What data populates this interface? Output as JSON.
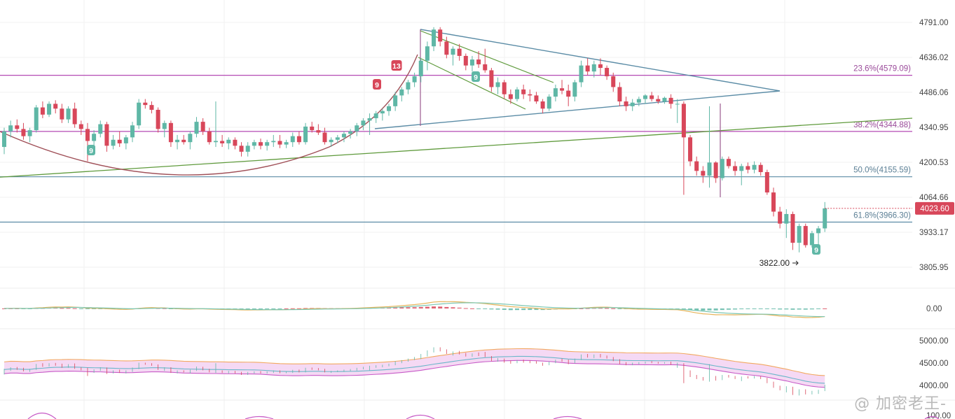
{
  "chart_data": [
    {
      "type": "candlestick",
      "panel": "price",
      "ylim": [
        3740,
        4835
      ],
      "y_ticks": [
        "4791.00",
        "4636.02",
        "4486.06",
        "4340.95",
        "4200.53",
        "4064.66",
        "3933.17",
        "3805.95"
      ],
      "last_price": "4023.60",
      "low_annotation": "3822.00",
      "fib_levels": [
        {
          "label": "23.6%(4579.09)",
          "value": 4579.09
        },
        {
          "label": "38.2%(4344.88)",
          "value": 4344.88
        },
        {
          "label": "50.0%(4155.59)",
          "value": 4155.59
        },
        {
          "label": "61.8%(3966.30)",
          "value": 3966.3
        }
      ],
      "markers": [
        "9",
        "9",
        "13",
        "9",
        "9"
      ],
      "candles": [
        [
          4280,
          4360,
          4250,
          4345
        ],
        [
          4345,
          4390,
          4320,
          4370
        ],
        [
          4370,
          4395,
          4340,
          4355
        ],
        [
          4355,
          4380,
          4310,
          4325
        ],
        [
          4325,
          4360,
          4300,
          4350
        ],
        [
          4350,
          4455,
          4340,
          4445
        ],
        [
          4445,
          4470,
          4400,
          4415
        ],
        [
          4415,
          4470,
          4405,
          4460
        ],
        [
          4460,
          4475,
          4420,
          4440
        ],
        [
          4440,
          4460,
          4380,
          4395
        ],
        [
          4395,
          4450,
          4380,
          4440
        ],
        [
          4440,
          4465,
          4360,
          4375
        ],
        [
          4375,
          4390,
          4330,
          4355
        ],
        [
          4355,
          4380,
          4220,
          4305
        ],
        [
          4305,
          4350,
          4280,
          4335
        ],
        [
          4335,
          4390,
          4320,
          4375
        ],
        [
          4375,
          4385,
          4260,
          4285
        ],
        [
          4285,
          4330,
          4270,
          4310
        ],
        [
          4310,
          4345,
          4280,
          4295
        ],
        [
          4295,
          4330,
          4270,
          4320
        ],
        [
          4320,
          4385,
          4300,
          4370
        ],
        [
          4370,
          4480,
          4355,
          4465
        ],
        [
          4465,
          4480,
          4440,
          4455
        ],
        [
          4455,
          4470,
          4420,
          4435
        ],
        [
          4435,
          4445,
          4340,
          4355
        ],
        [
          4355,
          4390,
          4320,
          4380
        ],
        [
          4380,
          4390,
          4280,
          4300
        ],
        [
          4300,
          4330,
          4270,
          4310
        ],
        [
          4310,
          4330,
          4290,
          4300
        ],
        [
          4300,
          4345,
          4270,
          4335
        ],
        [
          4335,
          4405,
          4320,
          4385
        ],
        [
          4385,
          4400,
          4330,
          4345
        ],
        [
          4345,
          4360,
          4290,
          4300
        ],
        [
          4300,
          4470,
          4280,
          4305
        ],
        [
          4305,
          4330,
          4280,
          4295
        ],
        [
          4295,
          4320,
          4270,
          4310
        ],
        [
          4310,
          4320,
          4270,
          4285
        ],
        [
          4285,
          4300,
          4240,
          4260
        ],
        [
          4260,
          4300,
          4240,
          4285
        ],
        [
          4285,
          4310,
          4270,
          4300
        ],
        [
          4300,
          4315,
          4270,
          4285
        ],
        [
          4285,
          4310,
          4265,
          4300
        ],
        [
          4300,
          4330,
          4280,
          4305
        ],
        [
          4305,
          4330,
          4275,
          4290
        ],
        [
          4290,
          4310,
          4275,
          4300
        ],
        [
          4300,
          4340,
          4280,
          4325
        ],
        [
          4325,
          4345,
          4290,
          4300
        ],
        [
          4300,
          4380,
          4290,
          4365
        ],
        [
          4365,
          4385,
          4340,
          4350
        ],
        [
          4350,
          4375,
          4330,
          4340
        ],
        [
          4340,
          4360,
          4290,
          4300
        ],
        [
          4300,
          4320,
          4280,
          4310
        ],
        [
          4310,
          4330,
          4295,
          4320
        ],
        [
          4320,
          4345,
          4300,
          4335
        ],
        [
          4335,
          4355,
          4315,
          4345
        ],
        [
          4345,
          4380,
          4325,
          4370
        ],
        [
          4370,
          4400,
          4350,
          4390
        ],
        [
          4390,
          4420,
          4330,
          4400
        ],
        [
          4400,
          4430,
          4380,
          4420
        ],
        [
          4420,
          4440,
          4390,
          4430
        ],
        [
          4430,
          4460,
          4410,
          4450
        ],
        [
          4450,
          4510,
          4430,
          4495
        ],
        [
          4495,
          4530,
          4470,
          4520
        ],
        [
          4520,
          4560,
          4500,
          4550
        ],
        [
          4550,
          4590,
          4530,
          4575
        ],
        [
          4575,
          4650,
          4550,
          4640
        ],
        [
          4640,
          4720,
          4600,
          4700
        ],
        [
          4700,
          4780,
          4680,
          4770
        ],
        [
          4770,
          4780,
          4700,
          4720
        ],
        [
          4720,
          4740,
          4650,
          4665
        ],
        [
          4665,
          4700,
          4620,
          4690
        ],
        [
          4690,
          4710,
          4640,
          4660
        ],
        [
          4660,
          4670,
          4600,
          4620
        ],
        [
          4620,
          4660,
          4595,
          4645
        ],
        [
          4645,
          4680,
          4610,
          4625
        ],
        [
          4625,
          4690,
          4590,
          4600
        ],
        [
          4600,
          4610,
          4510,
          4530
        ],
        [
          4530,
          4570,
          4500,
          4550
        ],
        [
          4550,
          4560,
          4480,
          4500
        ],
        [
          4500,
          4520,
          4460,
          4480
        ],
        [
          4480,
          4530,
          4470,
          4520
        ],
        [
          4520,
          4540,
          4480,
          4500
        ],
        [
          4500,
          4520,
          4470,
          4495
        ],
        [
          4495,
          4510,
          4460,
          4470
        ],
        [
          4470,
          4480,
          4420,
          4440
        ],
        [
          4440,
          4500,
          4430,
          4490
        ],
        [
          4490,
          4540,
          4470,
          4525
        ],
        [
          4525,
          4560,
          4500,
          4515
        ],
        [
          4515,
          4540,
          4450,
          4490
        ],
        [
          4490,
          4560,
          4470,
          4550
        ],
        [
          4550,
          4640,
          4530,
          4620
        ],
        [
          4620,
          4650,
          4580,
          4595
        ],
        [
          4595,
          4640,
          4570,
          4625
        ],
        [
          4625,
          4650,
          4580,
          4610
        ],
        [
          4610,
          4620,
          4560,
          4575
        ],
        [
          4575,
          4590,
          4510,
          4530
        ],
        [
          4530,
          4550,
          4450,
          4470
        ],
        [
          4470,
          4490,
          4430,
          4450
        ],
        [
          4450,
          4480,
          4430,
          4465
        ],
        [
          4465,
          4490,
          4450,
          4480
        ],
        [
          4480,
          4500,
          4460,
          4495
        ],
        [
          4495,
          4510,
          4470,
          4480
        ],
        [
          4480,
          4495,
          4460,
          4470
        ],
        [
          4470,
          4490,
          4460,
          4485
        ],
        [
          4485,
          4500,
          4440,
          4460
        ],
        [
          4460,
          4480,
          4380,
          4460
        ],
        [
          4460,
          4470,
          4080,
          4320
        ],
        [
          4320,
          4330,
          4200,
          4220
        ],
        [
          4220,
          4240,
          4160,
          4180
        ],
        [
          4180,
          4200,
          4130,
          4160
        ],
        [
          4160,
          4450,
          4110,
          4215
        ],
        [
          4215,
          4220,
          4130,
          4150
        ],
        [
          4150,
          4240,
          4140,
          4230
        ],
        [
          4230,
          4240,
          4190,
          4200
        ],
        [
          4200,
          4220,
          4160,
          4180
        ],
        [
          4180,
          4210,
          4120,
          4200
        ],
        [
          4200,
          4215,
          4170,
          4185
        ],
        [
          4185,
          4220,
          4170,
          4205
        ],
        [
          4205,
          4215,
          4160,
          4175
        ],
        [
          4175,
          4185,
          4080,
          4090
        ],
        [
          4090,
          4110,
          3990,
          4010
        ],
        [
          4010,
          4030,
          3940,
          3960
        ],
        [
          3960,
          4020,
          3900,
          4000
        ],
        [
          4000,
          4010,
          3850,
          3880
        ],
        [
          3880,
          3960,
          3840,
          3950
        ],
        [
          3950,
          3960,
          3860,
          3870
        ],
        [
          3870,
          3930,
          3860,
          3920
        ],
        [
          3920,
          3950,
          3870,
          3940
        ],
        [
          3940,
          4050,
          3925,
          4023.6
        ]
      ]
    },
    {
      "type": "histogram+line",
      "panel": "macd",
      "y_ticks": [
        "0.00"
      ],
      "ylim": [
        -60,
        60
      ]
    },
    {
      "type": "line",
      "panel": "bands",
      "y_ticks": [
        "5000.00",
        "4500.00",
        "4000.00"
      ],
      "ylim": [
        3790,
        5060
      ]
    },
    {
      "type": "line",
      "panel": "oscillator",
      "y_ticks": [
        "100.00"
      ]
    }
  ],
  "watermark": "@ 加密老王-",
  "colors": {
    "up": "#5fb7a6",
    "down": "#d8475a",
    "grid": "#f2f2f2",
    "fib": "#b44ab4",
    "fib_label": "#9a4a9a",
    "triangle": "#5b8ca6",
    "channel": "#5f9a3c",
    "arc": "#a05058",
    "mid_line": "#5f9a3c",
    "price_tag": "#d8475a"
  }
}
